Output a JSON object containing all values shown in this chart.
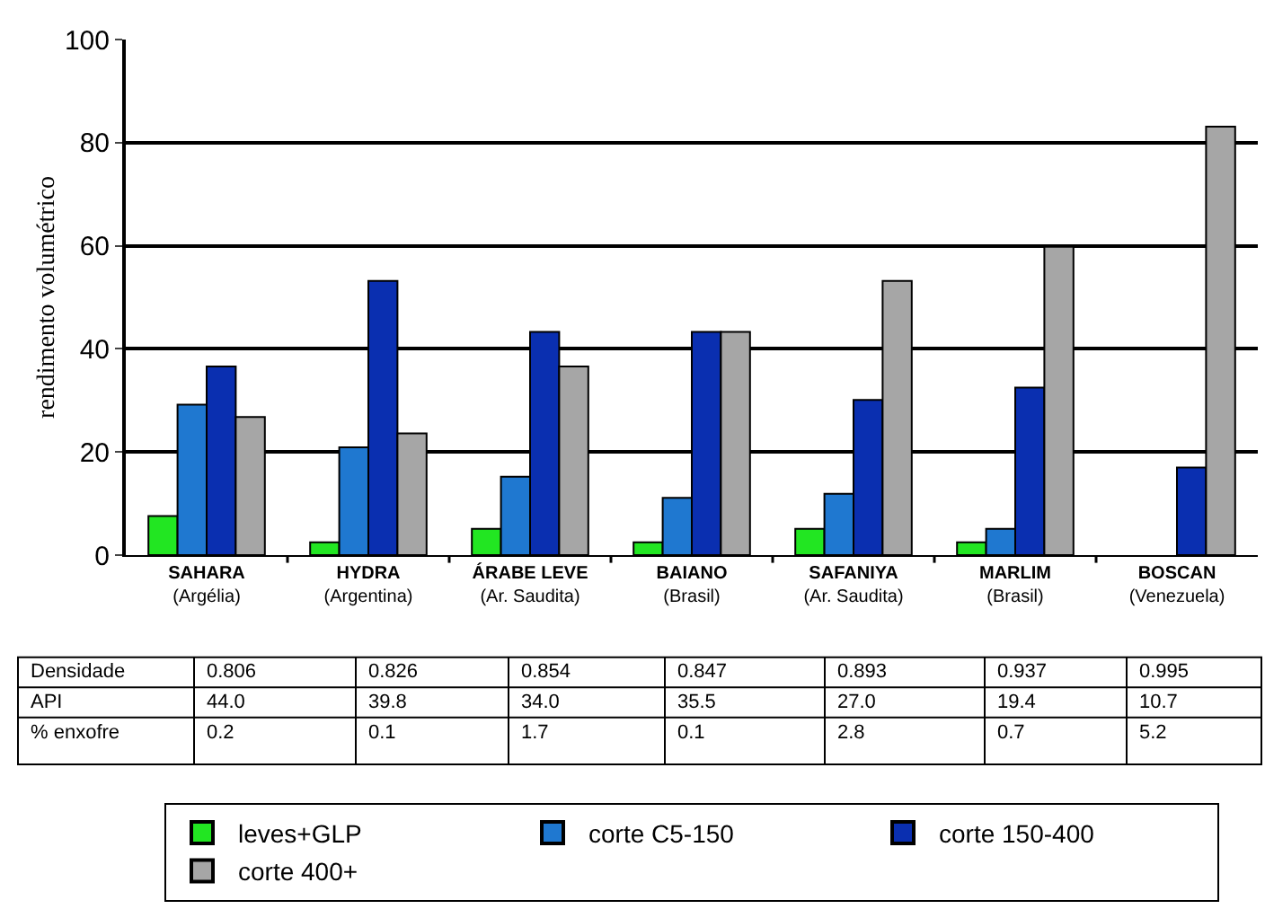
{
  "chart_data": {
    "type": "bar",
    "ylabel": "rendimento volumétrico",
    "categories": [
      "SAHARA\n(Argélia)",
      "HYDRA\n(Argentina)",
      "ÁRABE LEVE\n(Ar. Saudita)",
      "BAIANO\n(Brasil)",
      "SAFANIYA\n(Ar. Saudita)",
      "MARLIM\n(Brasil)",
      "BOSCAN\n(Venezuela)"
    ],
    "series": [
      {
        "name": "leves+GLP",
        "color": "#22e622",
        "values": [
          7.6,
          2.5,
          5.1,
          2.5,
          5.1,
          2.5,
          null
        ]
      },
      {
        "name": "corte C5-150",
        "color": "#1f78d0",
        "values": [
          29.2,
          20.9,
          15.2,
          11.1,
          11.9,
          5.1,
          null
        ]
      },
      {
        "name": "corte 150-400",
        "color": "#0a2fb0",
        "values": [
          36.6,
          53.2,
          43.3,
          43.3,
          30.1,
          32.5,
          17.0
        ]
      },
      {
        "name": "corte 400+",
        "color": "#a6a6a6",
        "values": [
          26.8,
          23.6,
          36.6,
          43.3,
          53.2,
          59.8,
          83.1
        ]
      }
    ],
    "ylim": [
      0,
      100
    ],
    "yticks": [
      0,
      20,
      40,
      60,
      80,
      100
    ],
    "grid": "y",
    "legend": "bottom",
    "annotations": [
      "Densidade",
      "0.806",
      "0.826",
      "0.854",
      "0.847",
      "0.893",
      "0.937",
      "0.995",
      "API",
      "44.0",
      "39.8",
      "34.0",
      "35.5",
      "27.0",
      "19.4",
      "10.7",
      "% enxofre",
      "0.2",
      "0.1",
      "1.7",
      "0.1",
      "2.8",
      "0.7",
      "5.2"
    ]
  }
}
